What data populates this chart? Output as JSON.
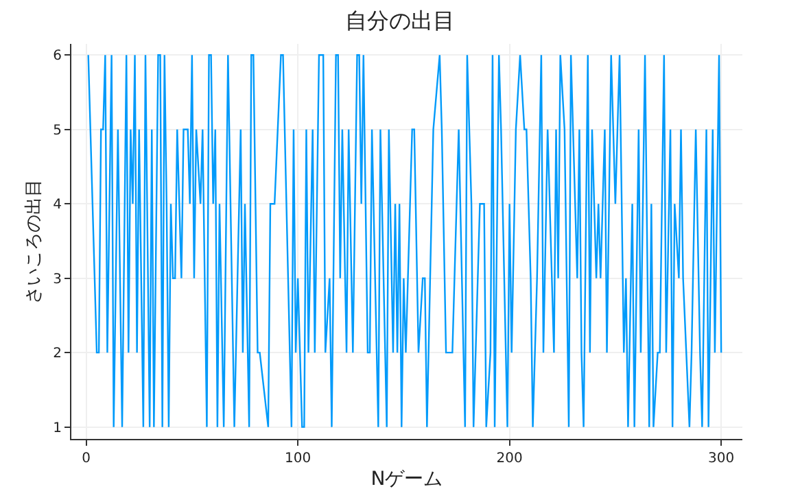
{
  "chart_data": {
    "type": "line",
    "title": "自分の出目",
    "xlabel": "Nゲーム",
    "ylabel": "さいころの出目",
    "xlim": [
      -7,
      310
    ],
    "ylim": [
      0.84,
      6.15
    ],
    "xticks": [
      0,
      100,
      200,
      300
    ],
    "yticks": [
      1,
      2,
      3,
      4,
      5,
      6
    ],
    "grid": true,
    "marker": "none",
    "line_style": "solid",
    "series": [
      {
        "color": "#009afa",
        "x": [
          1,
          5,
          6,
          7,
          8,
          9,
          10,
          12,
          13,
          15,
          17,
          19,
          20,
          21,
          22,
          23,
          24,
          25,
          27,
          28,
          30,
          31,
          32,
          34,
          35,
          36,
          37,
          38,
          39,
          40,
          41,
          42,
          43,
          45,
          46,
          48,
          49,
          50,
          51,
          52,
          54,
          55,
          57,
          58,
          59,
          60,
          61,
          62,
          63,
          65,
          67,
          70,
          73,
          74,
          75,
          77,
          78,
          79,
          81,
          82,
          86,
          87,
          88,
          89,
          92,
          93,
          97,
          98,
          99,
          100,
          102,
          103,
          104,
          105,
          107,
          108,
          110,
          112,
          113,
          115,
          116,
          118,
          119,
          120,
          121,
          123,
          124,
          126,
          128,
          129,
          130,
          131,
          133,
          134,
          135,
          138,
          139,
          142,
          143,
          145,
          146,
          147,
          148,
          149,
          150,
          151,
          152,
          154,
          155,
          157,
          159,
          160,
          161,
          164,
          167,
          168,
          170,
          173,
          176,
          179,
          180,
          182,
          183,
          186,
          188,
          189,
          191,
          192,
          193,
          195,
          196,
          199,
          200,
          201,
          203,
          205,
          207,
          208,
          210,
          211,
          213,
          215,
          216,
          218,
          219,
          221,
          222,
          223,
          224,
          226,
          228,
          229,
          232,
          233,
          234,
          235,
          237,
          238,
          239,
          241,
          242,
          243,
          245,
          246,
          248,
          250,
          252,
          254,
          255,
          256,
          258,
          259,
          261,
          262,
          264,
          266,
          267,
          268,
          270,
          271,
          273,
          274,
          276,
          277,
          278,
          280,
          281,
          282,
          285,
          286,
          288,
          290,
          291,
          293,
          294,
          296,
          297,
          299,
          300
        ],
        "values": [
          6,
          2,
          2,
          5,
          5,
          6,
          2,
          6,
          1,
          5,
          1,
          6,
          2,
          5,
          4,
          6,
          2,
          5,
          1,
          6,
          1,
          5,
          1,
          6,
          6,
          1,
          6,
          4,
          1,
          4,
          3,
          3,
          5,
          3,
          5,
          5,
          4,
          6,
          3,
          5,
          4,
          5,
          1,
          6,
          6,
          4,
          5,
          1,
          4,
          1,
          6,
          1,
          5,
          2,
          4,
          1,
          6,
          6,
          2,
          2,
          1,
          4,
          4,
          4,
          6,
          6,
          1,
          5,
          2,
          3,
          1,
          1,
          5,
          2,
          5,
          2,
          6,
          6,
          2,
          3,
          1,
          6,
          6,
          3,
          5,
          2,
          5,
          2,
          6,
          6,
          4,
          6,
          2,
          2,
          5,
          1,
          5,
          1,
          5,
          2,
          4,
          2,
          4,
          1,
          3,
          2,
          3,
          5,
          5,
          2,
          3,
          3,
          1,
          5,
          6,
          5,
          2,
          2,
          5,
          1,
          6,
          4,
          1,
          4,
          4,
          1,
          2,
          6,
          1,
          6,
          5,
          1,
          4,
          2,
          5,
          6,
          5,
          5,
          3,
          1,
          3,
          6,
          2,
          5,
          4,
          2,
          5,
          3,
          6,
          5,
          1,
          6,
          3,
          5,
          2,
          1,
          6,
          2,
          5,
          3,
          4,
          3,
          5,
          2,
          6,
          4,
          6,
          2,
          3,
          1,
          4,
          1,
          5,
          2,
          6,
          1,
          4,
          1,
          2,
          2,
          6,
          2,
          5,
          1,
          4,
          3,
          5,
          3,
          1,
          2,
          5,
          2,
          1,
          5,
          1,
          5,
          2,
          6,
          2
        ]
      }
    ]
  }
}
